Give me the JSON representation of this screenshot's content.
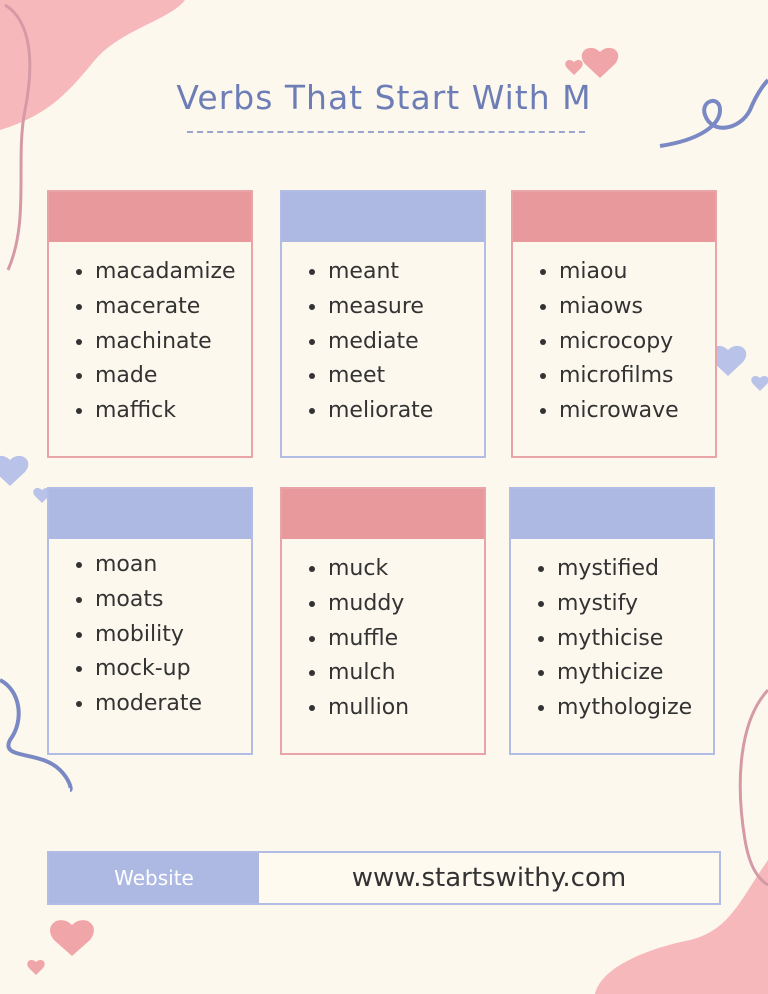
{
  "title": "Verbs That Start With M",
  "colors": {
    "pink": "#e8999c",
    "blue": "#adb9e3",
    "title": "#6d7db6",
    "background": "#fdf8ee"
  },
  "cards": [
    {
      "color": "pink",
      "items": [
        "macadamize",
        "macerate",
        "machinate",
        "made",
        "maffick"
      ]
    },
    {
      "color": "blue",
      "items": [
        "meant",
        "measure",
        "mediate",
        "meet",
        "meliorate"
      ]
    },
    {
      "color": "pink",
      "items": [
        "miaou",
        "miaows",
        "microcopy",
        "microfilms",
        "microwave"
      ]
    },
    {
      "color": "blue",
      "items": [
        "moan",
        "moats",
        "mobility",
        "mock-up",
        "moderate"
      ]
    },
    {
      "color": "pink",
      "items": [
        "muck",
        "muddy",
        "muffle",
        "mulch",
        "mullion"
      ]
    },
    {
      "color": "blue",
      "items": [
        "mystified",
        "mystify",
        "mythicise",
        "mythicize",
        "mythologize"
      ]
    }
  ],
  "footer": {
    "label": "Website",
    "url": "www.startswithy.com"
  },
  "decorations": [
    "heart-icon",
    "blob-shape",
    "squiggle-line"
  ]
}
